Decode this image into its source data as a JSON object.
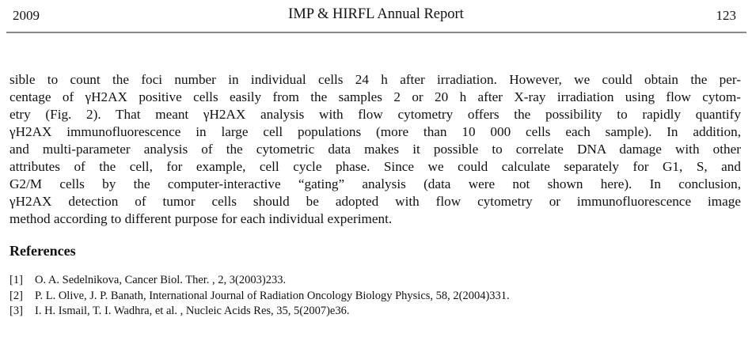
{
  "header": {
    "year": "2009",
    "title": "IMP & HIRFL Annual Report",
    "page": "123"
  },
  "body_lines": [
    "sible to count the foci number in individual cells 24 h after irradiation. However, we could obtain the per-",
    "centage of γH2AX positive cells easily from the samples 2 or 20 h after X-ray irradiation using flow cytom-",
    "etry (Fig. 2). That meant γH2AX analysis with flow cytometry offers the possibility to rapidly quantify",
    "γH2AX immunofluorescence in large cell populations (more than 10 000 cells each sample). In addition,",
    "and multi-parameter analysis of the cytometric data makes it possible to correlate DNA damage with other",
    "attributes of the cell, for example, cell cycle phase. Since we could calculate separately for G1, S, and",
    "G2/M cells by the computer-interactive “gating” analysis (data were not shown here). In conclusion,",
    "γH2AX detection of tumor cells should be adopted with flow cytometry or immunofluorescence image",
    "method according to different purpose for each individual experiment."
  ],
  "references": {
    "heading": "References",
    "items": [
      {
        "num": "[1]",
        "text": "O. A. Sedelnikova, Cancer Biol. Ther. , 2, 3(2003)233."
      },
      {
        "num": "[2]",
        "text": "P. L. Olive, J. P. Banath, International Journal of Radiation Oncology Biology Physics, 58, 2(2004)331."
      },
      {
        "num": "[3]",
        "text": "I. H. Ismail, T. I. Wadhra, et al. , Nucleic Acids Res, 35, 5(2007)e36."
      }
    ]
  }
}
